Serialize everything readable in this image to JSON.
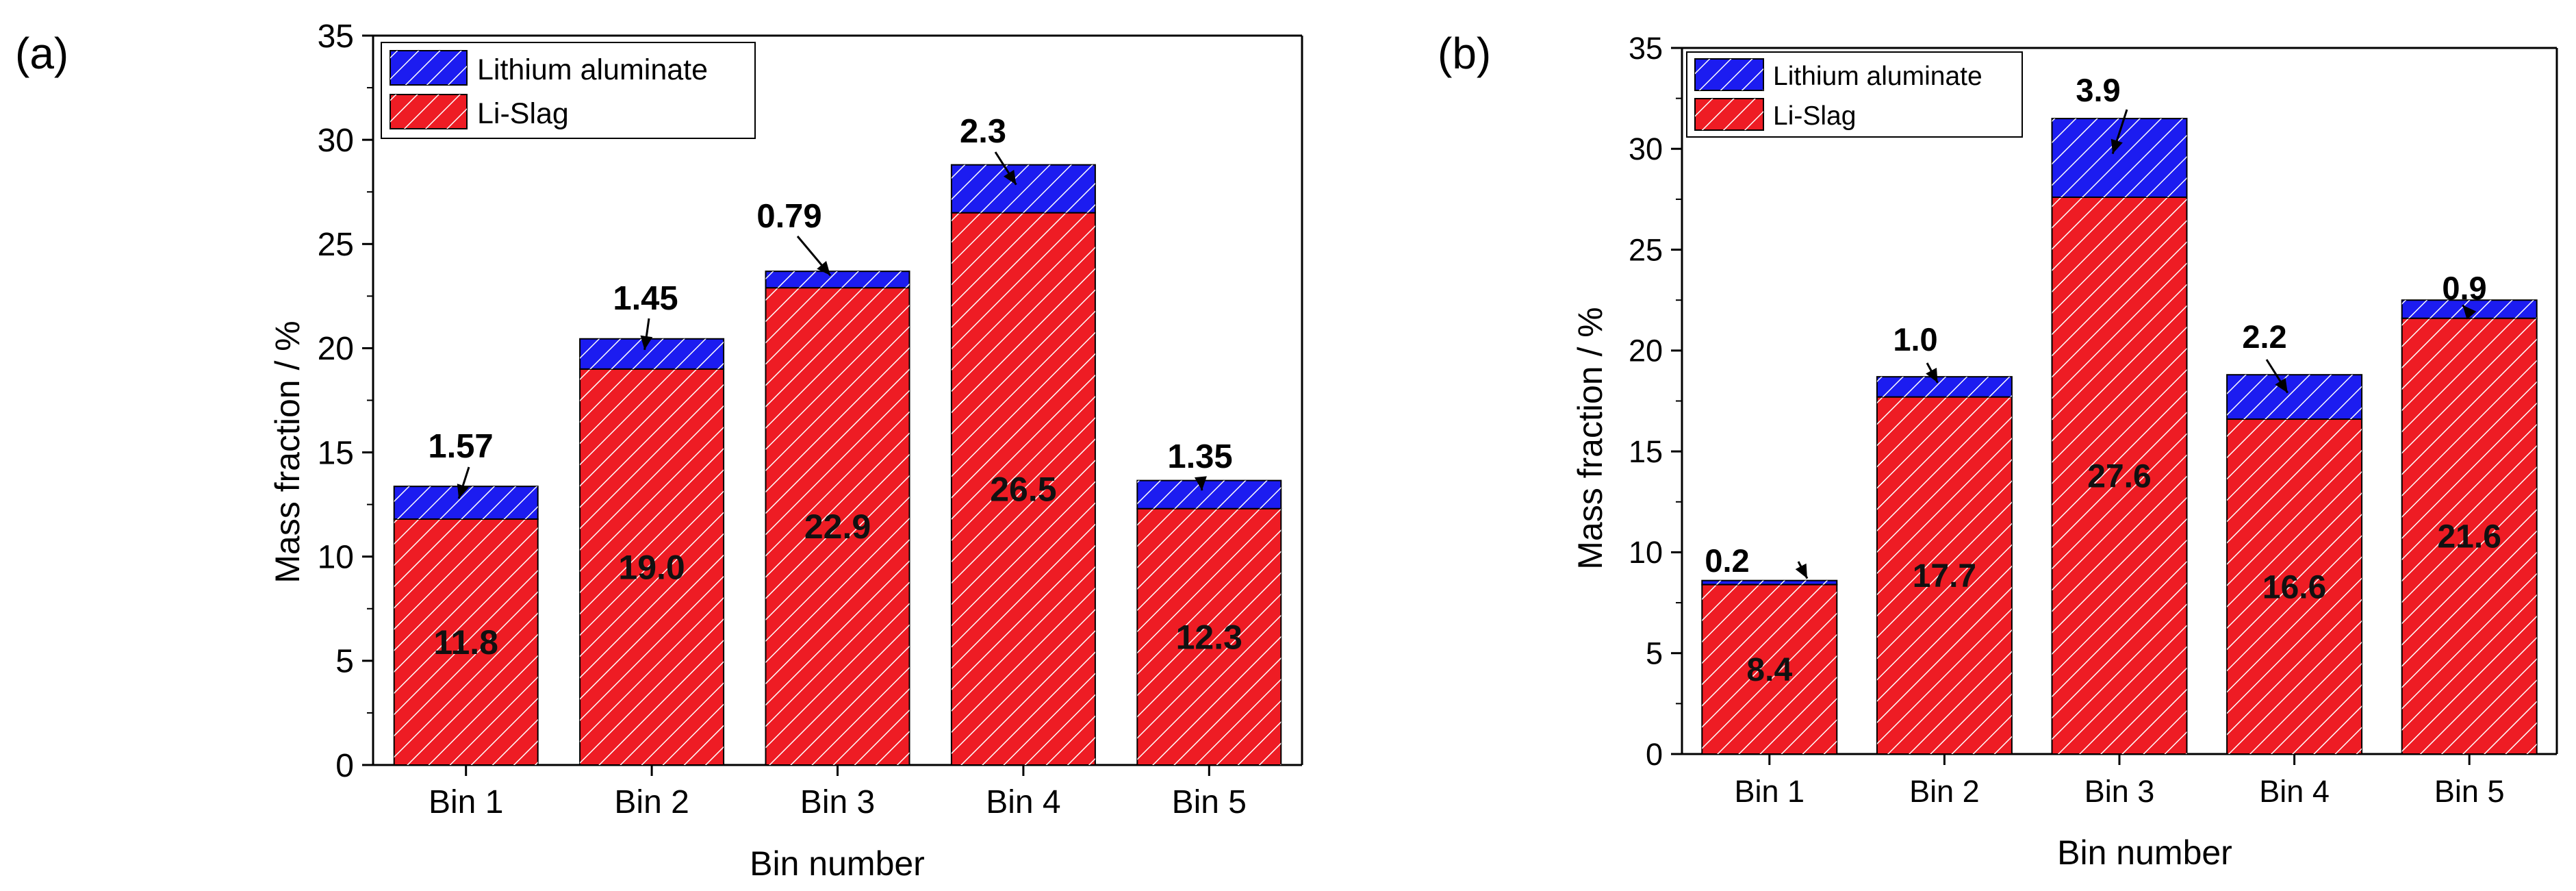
{
  "colors": {
    "li_slag": "#ee1c24",
    "lithium_aluminate": "#1c1cf0",
    "hatch": "#ffffff",
    "axis": "#000000"
  },
  "chart_data": [
    {
      "panel_label": "(a)",
      "type": "bar",
      "stacked": true,
      "categories": [
        "Bin 1",
        "Bin 2",
        "Bin 3",
        "Bin 4",
        "Bin 5"
      ],
      "series": [
        {
          "name": "Li-Slag",
          "values": [
            11.8,
            19.0,
            22.9,
            26.5,
            12.3
          ],
          "labels": [
            "11.8",
            "19.0",
            "22.9",
            "26.5",
            "12.3"
          ]
        },
        {
          "name": "Lithium aluminate",
          "values": [
            1.57,
            1.45,
            0.79,
            2.3,
            1.35
          ],
          "labels": [
            "1.57",
            "1.45",
            "0.79",
            "2.3",
            "1.35"
          ]
        }
      ],
      "xlabel": "Bin number",
      "ylabel": "Mass fraction / %",
      "ylim": [
        0,
        35
      ],
      "yticks": [
        "0",
        "5",
        "10",
        "15",
        "20",
        "25",
        "30",
        "35"
      ],
      "legend": [
        "Lithium aluminate",
        "Li-Slag"
      ],
      "legend_position": "top-left"
    },
    {
      "panel_label": "(b)",
      "type": "bar",
      "stacked": true,
      "categories": [
        "Bin 1",
        "Bin 2",
        "Bin 3",
        "Bin 4",
        "Bin 5"
      ],
      "series": [
        {
          "name": "Li-Slag",
          "values": [
            8.4,
            17.7,
            27.6,
            16.6,
            21.6
          ],
          "labels": [
            "8.4",
            "17.7",
            "27.6",
            "16.6",
            "21.6"
          ]
        },
        {
          "name": "Lithium aluminate",
          "values": [
            0.2,
            1.0,
            3.9,
            2.2,
            0.9
          ],
          "labels": [
            "0.2",
            "1.0",
            "3.9",
            "2.2",
            "0.9"
          ]
        }
      ],
      "xlabel": "Bin number",
      "ylabel": "Mass fraction / %",
      "ylim": [
        0,
        35
      ],
      "yticks": [
        "0",
        "5",
        "10",
        "15",
        "20",
        "25",
        "30",
        "35"
      ],
      "legend": [
        "Lithium aluminate",
        "Li-Slag"
      ],
      "legend_position": "top-left"
    }
  ]
}
